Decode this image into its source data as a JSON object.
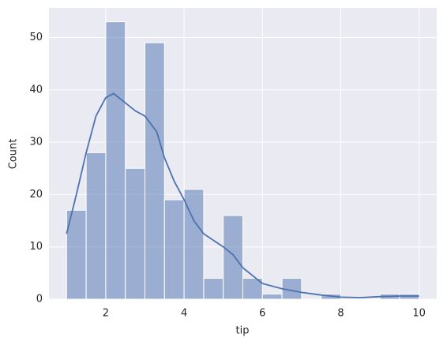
{
  "chart_data": {
    "type": "histogram",
    "xlabel": "tip",
    "ylabel": "Count",
    "bins": [
      1.0,
      1.5,
      2.0,
      2.5,
      3.0,
      3.5,
      4.0,
      4.5,
      5.0,
      5.5,
      6.0,
      6.5,
      7.0,
      7.5,
      8.0,
      8.5,
      9.0,
      9.5,
      10.0
    ],
    "values": [
      17,
      28,
      53,
      25,
      49,
      19,
      21,
      4,
      16,
      4,
      1,
      4,
      0,
      1,
      0,
      0,
      1,
      1
    ],
    "color": "#4c72b0",
    "kde": {
      "x": [
        1.0,
        1.25,
        1.5,
        1.75,
        2.0,
        2.2,
        2.5,
        2.75,
        3.0,
        3.3,
        3.5,
        3.75,
        4.0,
        4.25,
        4.5,
        5.0,
        5.25,
        5.5,
        6.0,
        6.5,
        7.0,
        7.5,
        8.0,
        8.5,
        9.0,
        9.5,
        10.0
      ],
      "values": [
        12.5,
        20,
        28,
        35,
        38.5,
        39.3,
        37.5,
        36,
        35,
        32,
        27,
        22.5,
        19,
        15,
        12.5,
        10,
        8.5,
        6,
        3,
        2,
        1.3,
        0.8,
        0.4,
        0.3,
        0.5,
        0.6,
        0.6
      ]
    },
    "xlim": [
      0.55,
      10.45
    ],
    "ylim": [
      0,
      55.65
    ],
    "xticks": [
      2,
      4,
      6,
      8,
      10
    ],
    "yticks": [
      0,
      10,
      20,
      30,
      40,
      50
    ],
    "grid": true
  }
}
